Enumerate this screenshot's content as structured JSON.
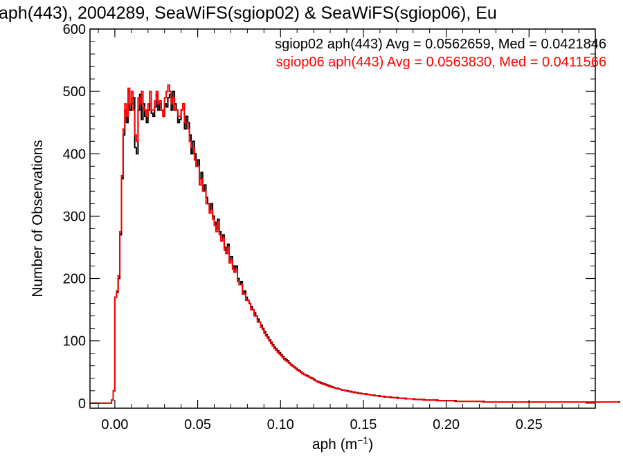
{
  "chart_data": {
    "type": "histogram",
    "title": "aph(443), 2004289, SeaWiFS(sgiop02) & SeaWiFS(sgiop06), Eu",
    "xlabel": "aph (m",
    "xlabel_sup": "−1",
    "xlabel_close": ")",
    "ylabel": "Number of Observations",
    "xlim": [
      -0.015,
      0.29
    ],
    "ylim": [
      -8,
      600
    ],
    "xticks": [
      0.0,
      0.05,
      0.1,
      0.15,
      0.2,
      0.25
    ],
    "xtick_labels": [
      "0.00",
      "0.05",
      "0.10",
      "0.15",
      "0.20",
      "0.25"
    ],
    "yticks": [
      0,
      100,
      200,
      300,
      400,
      500,
      600
    ],
    "ytick_labels": [
      "0",
      "100",
      "200",
      "300",
      "400",
      "500",
      "600"
    ],
    "bin_width": 0.001,
    "bin_start": -0.015,
    "series": [
      {
        "name": "sgiop02",
        "legend": "sgiop02 aph(443) Avg = 0.0562659, Med = 0.0421846",
        "color": "#000000",
        "values": [
          0,
          0,
          0,
          0,
          0,
          0,
          0,
          0,
          0,
          0,
          0,
          0,
          0,
          5,
          20,
          170,
          178,
          200,
          270,
          360,
          430,
          470,
          450,
          500,
          470,
          480,
          490,
          410,
          400,
          470,
          495,
          455,
          480,
          460,
          450,
          470,
          480,
          465,
          460,
          475,
          495,
          470,
          480,
          470,
          460,
          480,
          475,
          490,
          495,
          470,
          500,
          480,
          470,
          450,
          455,
          470,
          480,
          440,
          460,
          450,
          430,
          400,
          420,
          400,
          380,
          390,
          360,
          370,
          340,
          350,
          330,
          320,
          310,
          320,
          300,
          290,
          280,
          295,
          275,
          260,
          270,
          250,
          240,
          255,
          230,
          235,
          220,
          210,
          220,
          200,
          190,
          195,
          175,
          180,
          170,
          165,
          160,
          155,
          150,
          145,
          140,
          135,
          130,
          125,
          120,
          115,
          110,
          106,
          102,
          98,
          94,
          90,
          87,
          84,
          81,
          78,
          75,
          72,
          70,
          68,
          65,
          62,
          60,
          58,
          56,
          54,
          52,
          50,
          48,
          46,
          45,
          44,
          42,
          41,
          40,
          38,
          36,
          35,
          34,
          33,
          32,
          31,
          30,
          29,
          28,
          27,
          26,
          25,
          24,
          24,
          23,
          22,
          21,
          21,
          20,
          20,
          19,
          19,
          18,
          18,
          17,
          17,
          16,
          16,
          15,
          15,
          15,
          14,
          14,
          13,
          13,
          13,
          12,
          12,
          12,
          11,
          11,
          11,
          10,
          10,
          10,
          10,
          9,
          9,
          9,
          9,
          8,
          8,
          8,
          8,
          8,
          7,
          7,
          7,
          7,
          7,
          6,
          6,
          6,
          6,
          6,
          6,
          5,
          5,
          5,
          5,
          5,
          5,
          5,
          5,
          4,
          4,
          4,
          4,
          4,
          4,
          4,
          4,
          4,
          4,
          4,
          3,
          3,
          3,
          3,
          3,
          3,
          3,
          3,
          3,
          3,
          3,
          3,
          3,
          3,
          3,
          3,
          3,
          2,
          2,
          2,
          2,
          2,
          2,
          2,
          2,
          2,
          2,
          2,
          2,
          2,
          2,
          2,
          2,
          2,
          2,
          2,
          2,
          2,
          2,
          2,
          2,
          2,
          2,
          2,
          2,
          2,
          2,
          2,
          2,
          2,
          2,
          2,
          2,
          2,
          2,
          2,
          2,
          2,
          2,
          2,
          2,
          2,
          2,
          2,
          2,
          2,
          2,
          2,
          2,
          2,
          2,
          2,
          2,
          2,
          2,
          2,
          2,
          2,
          2,
          2,
          2,
          2,
          2,
          2,
          2,
          2,
          2,
          2,
          2,
          2,
          2,
          2,
          2,
          2,
          2,
          2,
          2,
          2,
          2,
          2
        ]
      },
      {
        "name": "sgiop06",
        "legend": "sgiop06 aph(443) Avg = 0.0563830, Med = 0.0411566",
        "color": "#ff0000",
        "values": [
          0,
          0,
          0,
          0,
          0,
          0,
          0,
          0,
          0,
          0,
          0,
          0,
          0,
          5,
          20,
          170,
          180,
          205,
          275,
          365,
          440,
          480,
          460,
          505,
          480,
          500,
          470,
          430,
          420,
          490,
          480,
          500,
          475,
          470,
          460,
          480,
          500,
          470,
          470,
          485,
          500,
          480,
          485,
          470,
          460,
          490,
          500,
          510,
          500,
          480,
          490,
          470,
          470,
          460,
          460,
          470,
          480,
          450,
          450,
          440,
          420,
          410,
          410,
          390,
          380,
          380,
          350,
          360,
          340,
          340,
          320,
          320,
          305,
          310,
          295,
          285,
          275,
          290,
          270,
          260,
          265,
          245,
          240,
          250,
          225,
          230,
          215,
          210,
          215,
          195,
          190,
          190,
          175,
          175,
          165,
          165,
          160,
          150,
          150,
          140,
          140,
          130,
          130,
          122,
          118,
          112,
          108,
          104,
          100,
          96,
          92,
          88,
          85,
          82,
          79,
          76,
          73,
          70,
          68,
          66,
          64,
          61,
          59,
          57,
          55,
          53,
          51,
          49,
          47,
          46,
          44,
          43,
          42,
          40,
          39,
          37,
          36,
          34,
          33,
          32,
          31,
          30,
          29,
          28,
          27,
          26,
          25,
          25,
          24,
          23,
          23,
          22,
          21,
          21,
          20,
          19,
          19,
          18,
          18,
          17,
          17,
          16,
          16,
          15,
          15,
          15,
          14,
          14,
          14,
          13,
          13,
          12,
          12,
          12,
          11,
          11,
          11,
          10,
          10,
          10,
          10,
          9,
          9,
          9,
          9,
          8,
          8,
          8,
          8,
          8,
          7,
          7,
          7,
          7,
          7,
          6,
          6,
          6,
          6,
          6,
          6,
          5,
          5,
          5,
          5,
          5,
          5,
          5,
          5,
          4,
          4,
          4,
          4,
          4,
          4,
          4,
          4,
          4,
          4,
          4,
          3,
          3,
          3,
          3,
          3,
          3,
          3,
          3,
          3,
          3,
          3,
          3,
          3,
          3,
          3,
          3,
          3,
          2,
          2,
          2,
          2,
          2,
          2,
          2,
          2,
          2,
          2,
          2,
          2,
          2,
          2,
          2,
          2,
          2,
          2,
          2,
          2,
          2,
          2,
          2,
          2,
          2,
          2,
          2,
          2,
          2,
          2,
          2,
          2,
          2,
          2,
          2,
          2,
          2,
          2,
          2,
          2,
          2,
          2,
          2,
          2,
          2,
          2,
          2,
          2,
          2,
          2,
          2,
          2,
          2,
          2,
          2,
          2,
          2,
          2,
          2,
          2,
          2,
          2,
          2,
          2,
          2,
          2,
          2,
          2,
          2,
          2,
          2,
          2,
          2,
          2,
          2,
          2,
          2,
          2,
          2,
          2,
          2,
          2,
          2
        ]
      }
    ],
    "grid": false,
    "legend_placement": "top-right"
  }
}
